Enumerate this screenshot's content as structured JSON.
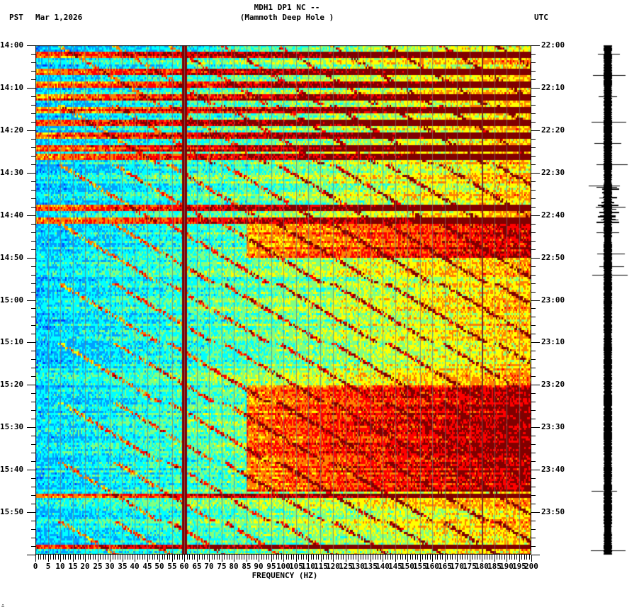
{
  "header": {
    "station_line": "MDH1 DP1 NC --",
    "site_line": "(Mammoth Deep Hole )",
    "left_tz": "PST",
    "date": "Mar 1,2026",
    "right_tz": "UTC"
  },
  "footer": {
    "corner_mark": "∴"
  },
  "chart_data": {
    "type": "heatmap",
    "title": "MDH1 DP1 NC -- (Mammoth Deep Hole ) spectrogram, Mar 1,2026",
    "xlabel": "FREQUENCY (HZ)",
    "ylabel_left": "PST",
    "ylabel_right": "UTC",
    "xlim": [
      0,
      200
    ],
    "x_ticks": [
      0,
      5,
      10,
      15,
      20,
      25,
      30,
      35,
      40,
      45,
      50,
      55,
      60,
      65,
      70,
      75,
      80,
      85,
      90,
      95,
      100,
      105,
      110,
      115,
      120,
      125,
      130,
      135,
      140,
      145,
      150,
      155,
      160,
      165,
      170,
      175,
      180,
      185,
      190,
      195,
      200
    ],
    "y_ticks_pst": [
      "14:00",
      "14:10",
      "14:20",
      "14:30",
      "14:40",
      "14:50",
      "15:00",
      "15:10",
      "15:20",
      "15:30",
      "15:40",
      "15:50"
    ],
    "y_ticks_utc": [
      "22:00",
      "22:10",
      "22:20",
      "22:30",
      "22:40",
      "22:50",
      "23:00",
      "23:10",
      "23:20",
      "23:30",
      "23:40",
      "23:50"
    ],
    "time_span_minutes": 120,
    "colormap": [
      "#0040ff",
      "#00a0ff",
      "#00ffff",
      "#80ff80",
      "#ffff00",
      "#ff8000",
      "#ff0000",
      "#800000"
    ],
    "grid": true,
    "features": [
      {
        "name": "persistent 60 Hz line",
        "freq_hz": 60,
        "intensity": "max"
      },
      {
        "name": "persistent 180 Hz line",
        "freq_hz": 180,
        "intensity": "high"
      },
      {
        "name": "broadband bursts",
        "times_pst": [
          "14:02",
          "14:06",
          "14:09",
          "14:12",
          "14:15",
          "14:18",
          "14:21",
          "14:24",
          "14:26",
          "14:38",
          "14:41",
          "15:46",
          "15:58"
        ]
      },
      {
        "name": "chirp/sweep harmonics",
        "time_range_pst": [
          "14:00",
          "16:00"
        ],
        "sweep": "low-to-high frequency curves"
      },
      {
        "name": "high-energy band",
        "time_range_pst": [
          "14:42",
          "14:50"
        ],
        "freq_range_hz": [
          85,
          200
        ]
      },
      {
        "name": "high-energy band",
        "time_range_pst": [
          "15:20",
          "15:45"
        ],
        "freq_range_hz": [
          85,
          200
        ]
      }
    ]
  },
  "seismogram": {
    "label": "waveform trace",
    "spikes_pst": [
      "14:02",
      "14:07",
      "14:12",
      "14:18",
      "14:23",
      "14:28",
      "14:33",
      "14:38",
      "14:44",
      "14:49",
      "14:52",
      "14:54",
      "15:45",
      "15:59"
    ]
  }
}
